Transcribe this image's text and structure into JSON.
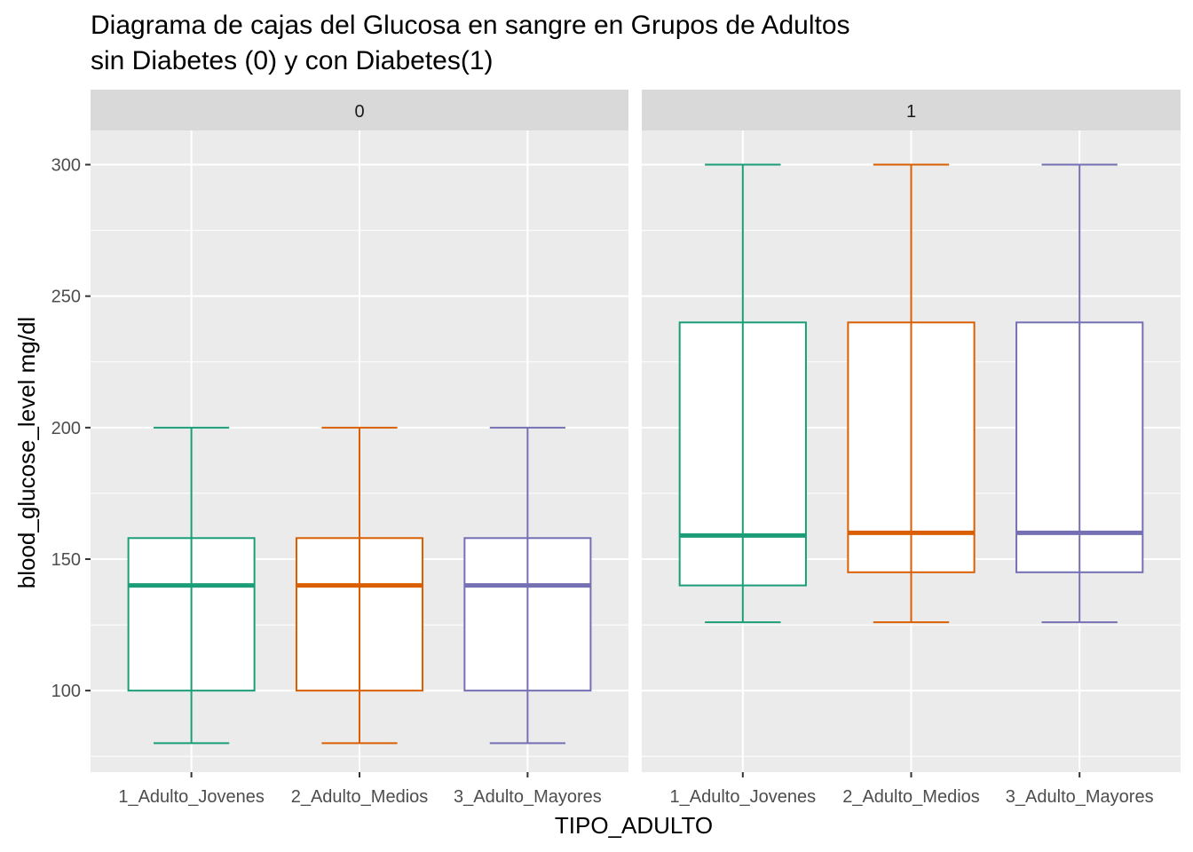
{
  "chart_data": {
    "type": "boxplot",
    "title": "Diagrama de cajas del Glucosa en sangre en Grupos de Adultos\nsin Diabetes (0) y con Diabetes(1)",
    "title_lines": [
      "Diagrama de cajas del Glucosa en sangre en Grupos de Adultos",
      "sin Diabetes (0) y con Diabetes(1)"
    ],
    "xlabel": "TIPO_ADULTO",
    "ylabel": "blood_glucose_level mg/dl",
    "ylim": [
      69,
      313
    ],
    "y_ticks": [
      100,
      150,
      200,
      250,
      300
    ],
    "grid": true,
    "categories": [
      "1_Adulto_Jovenes",
      "2_Adulto_Medios",
      "3_Adulto_Mayores"
    ],
    "colors": [
      "#1B9E77",
      "#D95F02",
      "#7570B3"
    ],
    "facets": [
      {
        "label": "0",
        "boxes": [
          {
            "category": "1_Adulto_Jovenes",
            "min": 80,
            "q1": 100,
            "median": 140,
            "q3": 158,
            "max": 200
          },
          {
            "category": "2_Adulto_Medios",
            "min": 80,
            "q1": 100,
            "median": 140,
            "q3": 158,
            "max": 200
          },
          {
            "category": "3_Adulto_Mayores",
            "min": 80,
            "q1": 100,
            "median": 140,
            "q3": 158,
            "max": 200
          }
        ]
      },
      {
        "label": "1",
        "boxes": [
          {
            "category": "1_Adulto_Jovenes",
            "min": 126,
            "q1": 140,
            "median": 159,
            "q3": 240,
            "max": 300
          },
          {
            "category": "2_Adulto_Medios",
            "min": 126,
            "q1": 145,
            "median": 160,
            "q3": 240,
            "max": 300
          },
          {
            "category": "3_Adulto_Mayores",
            "min": 126,
            "q1": 145,
            "median": 160,
            "q3": 240,
            "max": 300
          }
        ]
      }
    ]
  }
}
